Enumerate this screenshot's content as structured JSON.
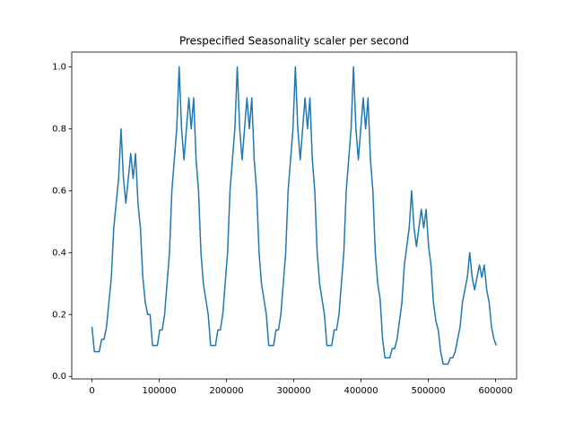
{
  "chart_data": {
    "type": "line",
    "title": "Prespecified Seasonality scaler per second",
    "x": [
      0,
      3600,
      7200,
      10800,
      14400,
      18000,
      21600,
      25200,
      28800,
      32400,
      36000,
      39600,
      43200,
      46800,
      50400,
      54000,
      57600,
      61200,
      64800,
      68400,
      72000,
      75600,
      79200,
      82800,
      86400,
      90000,
      93600,
      97200,
      100800,
      104400,
      108000,
      111600,
      115200,
      118800,
      122400,
      126000,
      129600,
      133200,
      136800,
      140400,
      144000,
      147600,
      151200,
      154800,
      158400,
      162000,
      165600,
      169200,
      172800,
      176400,
      180000,
      183600,
      187200,
      190800,
      194400,
      198000,
      201600,
      205200,
      208800,
      212400,
      216000,
      219600,
      223200,
      226800,
      230400,
      234000,
      237600,
      241200,
      244800,
      248400,
      252000,
      255600,
      259200,
      262800,
      266400,
      270000,
      273600,
      277200,
      280800,
      284400,
      288000,
      291600,
      295200,
      298800,
      302400,
      306000,
      309600,
      313200,
      316800,
      320400,
      324000,
      327600,
      331200,
      334800,
      338400,
      342000,
      345600,
      349200,
      352800,
      356400,
      360000,
      363600,
      367200,
      370800,
      374400,
      378000,
      381600,
      385200,
      388800,
      392400,
      396000,
      399600,
      403200,
      406800,
      410400,
      414000,
      417600,
      421200,
      424800,
      428400,
      432000,
      435600,
      439200,
      442800,
      446400,
      450000,
      453600,
      457200,
      460800,
      464400,
      468000,
      471600,
      475200,
      478800,
      482400,
      486000,
      489600,
      493200,
      496800,
      500400,
      504000,
      507600,
      511200,
      514800,
      518400,
      522000,
      525600,
      529200,
      532800,
      536400,
      540000,
      543600,
      547200,
      550800,
      554400,
      558000,
      561600,
      565200,
      568800,
      572400,
      576000,
      579600,
      583200,
      586800,
      590400,
      594000,
      597600,
      601200
    ],
    "series": [
      {
        "color": "#1f77b4",
        "values": [
          0.16,
          0.08,
          0.08,
          0.08,
          0.12,
          0.12,
          0.16,
          0.24,
          0.32,
          0.48,
          0.56,
          0.64,
          0.8,
          0.64,
          0.56,
          0.64,
          0.72,
          0.64,
          0.72,
          0.56,
          0.48,
          0.32,
          0.24,
          0.2,
          0.2,
          0.1,
          0.1,
          0.1,
          0.15,
          0.15,
          0.2,
          0.3,
          0.4,
          0.6,
          0.7,
          0.8,
          1.0,
          0.8,
          0.7,
          0.8,
          0.9,
          0.8,
          0.9,
          0.7,
          0.6,
          0.4,
          0.3,
          0.25,
          0.2,
          0.1,
          0.1,
          0.1,
          0.15,
          0.15,
          0.2,
          0.3,
          0.4,
          0.6,
          0.7,
          0.8,
          1.0,
          0.8,
          0.7,
          0.8,
          0.9,
          0.8,
          0.9,
          0.7,
          0.6,
          0.4,
          0.3,
          0.25,
          0.2,
          0.1,
          0.1,
          0.1,
          0.15,
          0.15,
          0.2,
          0.3,
          0.4,
          0.6,
          0.7,
          0.8,
          1.0,
          0.8,
          0.7,
          0.8,
          0.9,
          0.8,
          0.9,
          0.7,
          0.6,
          0.4,
          0.3,
          0.25,
          0.2,
          0.1,
          0.1,
          0.1,
          0.15,
          0.15,
          0.2,
          0.3,
          0.4,
          0.6,
          0.7,
          0.8,
          1.0,
          0.8,
          0.7,
          0.8,
          0.9,
          0.8,
          0.9,
          0.7,
          0.6,
          0.4,
          0.3,
          0.25,
          0.12,
          0.06,
          0.06,
          0.06,
          0.09,
          0.09,
          0.12,
          0.18,
          0.24,
          0.36,
          0.42,
          0.48,
          0.6,
          0.48,
          0.42,
          0.48,
          0.54,
          0.48,
          0.54,
          0.42,
          0.36,
          0.24,
          0.18,
          0.15,
          0.08,
          0.04,
          0.04,
          0.04,
          0.06,
          0.06,
          0.08,
          0.12,
          0.16,
          0.24,
          0.28,
          0.32,
          0.4,
          0.32,
          0.28,
          0.32,
          0.36,
          0.32,
          0.36,
          0.28,
          0.24,
          0.16,
          0.12,
          0.1
        ]
      }
    ],
    "xlim": [
      -30060,
      631260
    ],
    "ylim": [
      -0.008,
      1.048
    ],
    "xticks": [
      0,
      100000,
      200000,
      300000,
      400000,
      500000,
      600000
    ],
    "yticks": [
      {
        "value": 0,
        "label": "0.0"
      },
      0.2,
      0.4,
      0.6,
      0.8,
      {
        "value": 1,
        "label": "1.0"
      }
    ]
  }
}
